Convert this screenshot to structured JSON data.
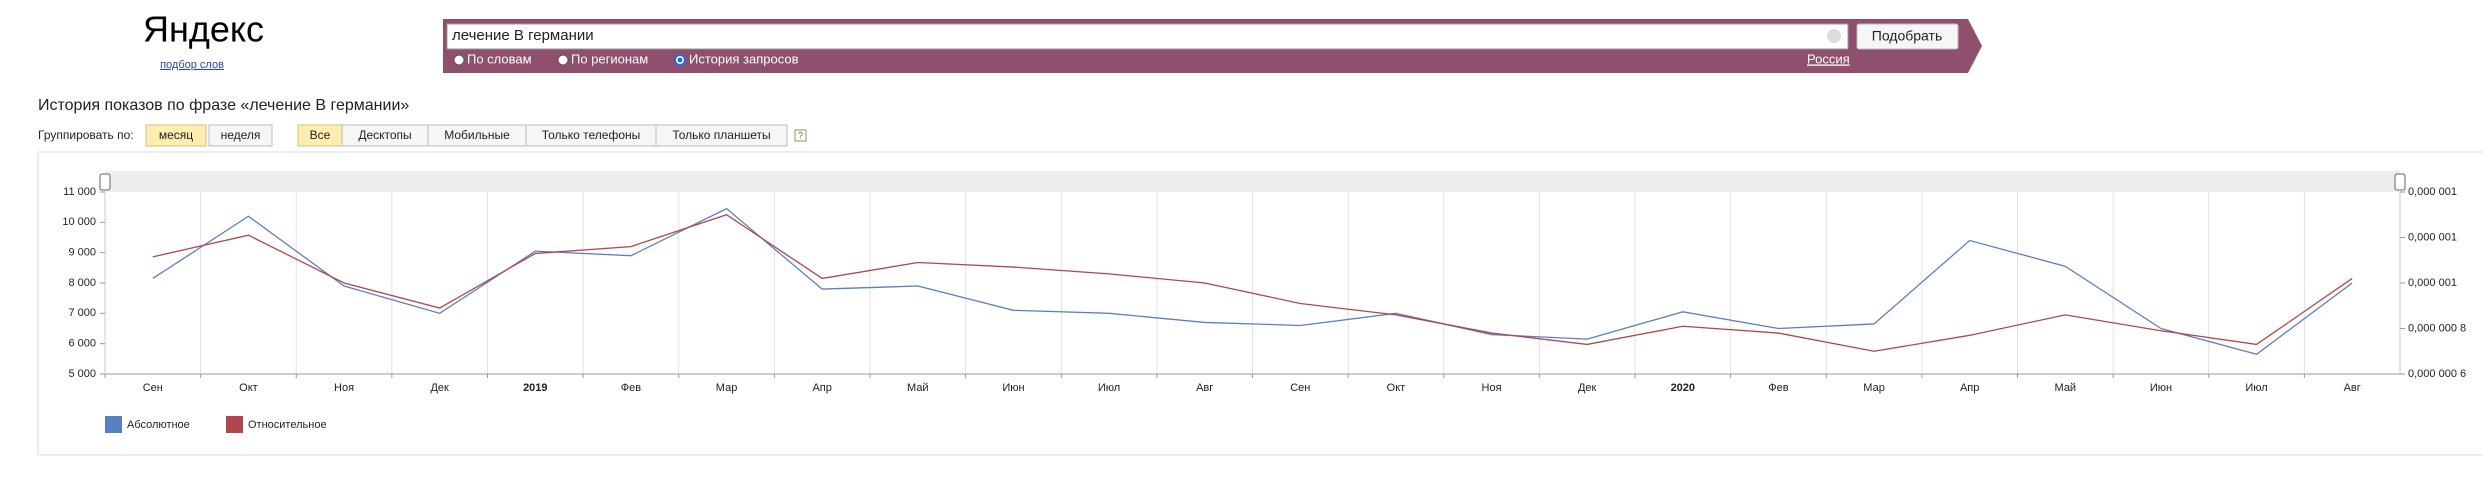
{
  "header": {
    "logo": "Яндекс",
    "logo_sub": "подбор слов",
    "query": "лечение  В германии",
    "submit": "Подобрать",
    "modes": [
      "По словам",
      "По регионам",
      "История запросов"
    ],
    "region": "Россия"
  },
  "page": {
    "heading": "История показов по фразе «лечение В германии»",
    "group_label": "Группировать по:",
    "group_options": [
      "месяц",
      "неделя"
    ],
    "device_options": [
      "Все",
      "Десктопы",
      "Мобильные",
      "Только телефоны",
      "Только планшеты"
    ],
    "help": "?"
  },
  "chart_data": {
    "type": "line",
    "categories": [
      "Сен",
      "Окт",
      "Ноя",
      "Дек",
      "2019",
      "Фев",
      "Мар",
      "Апр",
      "Май",
      "Июн",
      "Июл",
      "Авг",
      "Сен",
      "Окт",
      "Ноя",
      "Дек",
      "2020",
      "Фев",
      "Мар",
      "Апр",
      "Май",
      "Июн",
      "Июл",
      "Авг"
    ],
    "series": [
      {
        "name": "Абсолютное",
        "color": "#5b80c0",
        "values": [
          8150,
          10200,
          7900,
          7000,
          9050,
          8900,
          10450,
          7800,
          7900,
          7100,
          7000,
          6700,
          6600,
          7000,
          6300,
          6150,
          7050,
          6500,
          6650,
          9400,
          8550,
          6500,
          5650,
          8000
        ]
      },
      {
        "name": "Относительное",
        "color": "#b0474f",
        "axis": "y2",
        "values": [
          1.115e-06,
          1.21e-06,
          1e-06,
          8.9e-07,
          1.13e-06,
          1.16e-06,
          1.3e-06,
          1.02e-06,
          1.09e-06,
          1.07e-06,
          1.04e-06,
          1e-06,
          9.1e-07,
          8.6e-07,
          7.8e-07,
          7.3e-07,
          8.1e-07,
          7.8e-07,
          7e-07,
          7.7e-07,
          8.6e-07,
          7.9e-07,
          7.3e-07,
          1.02e-06
        ]
      }
    ],
    "ylim": [
      5000,
      11000
    ],
    "yticks": [
      {
        "value": 5000,
        "label": "5 000"
      },
      {
        "value": 6000,
        "label": "6 000"
      },
      {
        "value": 7000,
        "label": "7 000"
      },
      {
        "value": 8000,
        "label": "8 000"
      },
      {
        "value": 9000,
        "label": "9 000"
      },
      {
        "value": 10000,
        "label": "10 000"
      },
      {
        "value": 11000,
        "label": "11 000"
      }
    ],
    "y2lim": [
      6e-07,
      1.4e-06
    ],
    "y2ticks": [
      {
        "value": 6e-07,
        "label": "0,000 000 6"
      },
      {
        "value": 8e-07,
        "label": "0,000 000 8"
      },
      {
        "value": 1e-06,
        "label": "0,000 001"
      },
      {
        "value": 1.2e-06,
        "label": "0,000 001"
      },
      {
        "value": 1.4e-06,
        "label": "0,000 001"
      }
    ],
    "legend": "bottom-left"
  }
}
